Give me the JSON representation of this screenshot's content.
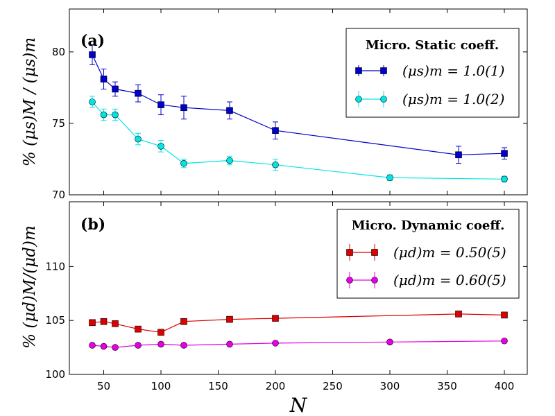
{
  "chart_data": [
    {
      "type": "line",
      "panel_label": "(a)",
      "ylabel": "% (μs)M / (μs)m",
      "xlim": [
        20,
        420
      ],
      "ylim": [
        70,
        83
      ],
      "yticks": [
        "70",
        "75",
        "80"
      ],
      "legend": {
        "title": "Micro. Static coeff.",
        "placement": "top-right"
      },
      "series": [
        {
          "name": "(μs)m = 1.0(1)",
          "color": "#0000cc",
          "marker": "square",
          "x": [
            40,
            50,
            60,
            80,
            100,
            120,
            160,
            200,
            360,
            400
          ],
          "y": [
            79.8,
            78.1,
            77.4,
            77.1,
            76.3,
            76.1,
            75.9,
            74.5,
            72.8,
            72.9
          ],
          "err": [
            0.7,
            0.7,
            0.5,
            0.6,
            0.7,
            0.8,
            0.6,
            0.6,
            0.6,
            0.4
          ]
        },
        {
          "name": "(μs)m = 1.0(2)",
          "color": "#00e5e5",
          "marker": "circle",
          "x": [
            40,
            50,
            60,
            80,
            100,
            120,
            160,
            200,
            300,
            400
          ],
          "y": [
            76.5,
            75.6,
            75.6,
            73.9,
            73.4,
            72.2,
            72.4,
            72.1,
            71.2,
            71.1
          ],
          "err": [
            0.4,
            0.4,
            0.4,
            0.4,
            0.4,
            0.3,
            0.3,
            0.4,
            0.2,
            0.2
          ]
        }
      ]
    },
    {
      "type": "line",
      "panel_label": "(b)",
      "ylabel": "% (μd)M/(μd)m",
      "xlabel": "N",
      "xlim": [
        20,
        420
      ],
      "ylim": [
        100,
        116
      ],
      "xticks": [
        "50",
        "100",
        "150",
        "200",
        "250",
        "300",
        "350",
        "400"
      ],
      "yticks": [
        "100",
        "105",
        "110"
      ],
      "legend": {
        "title": "Micro. Dynamic coeff.",
        "placement": "top-right"
      },
      "series": [
        {
          "name": "(μd)m = 0.50(5)",
          "color": "#dd0000",
          "marker": "square",
          "x": [
            40,
            50,
            60,
            80,
            100,
            120,
            160,
            200,
            360,
            400
          ],
          "y": [
            104.8,
            104.9,
            104.7,
            104.2,
            103.9,
            104.9,
            105.1,
            105.2,
            105.6,
            105.5
          ],
          "err": [
            0.1,
            0.1,
            0.1,
            0.1,
            0.1,
            0.1,
            0.1,
            0.1,
            0.1,
            0.1
          ]
        },
        {
          "name": "(μd)m = 0.60(5)",
          "color": "#e600e6",
          "marker": "circle",
          "x": [
            40,
            50,
            60,
            80,
            100,
            120,
            160,
            200,
            300,
            400
          ],
          "y": [
            102.7,
            102.6,
            102.5,
            102.7,
            102.8,
            102.7,
            102.8,
            102.9,
            103.0,
            103.1
          ],
          "err": [
            0.1,
            0.1,
            0.1,
            0.1,
            0.1,
            0.1,
            0.1,
            0.1,
            0.1,
            0.1
          ]
        }
      ]
    }
  ]
}
